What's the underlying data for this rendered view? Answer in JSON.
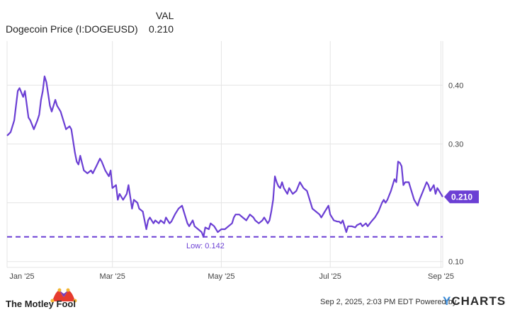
{
  "header": {
    "col_label": "VAL",
    "series_name": "Dogecoin Price (I:DOGEUSD)",
    "series_value": "0.210"
  },
  "footer": {
    "timestamp": "Sep 2, 2025, 2:03 PM EDT",
    "powered_by": "Powered by",
    "ycharts_y": "Y",
    "ycharts_rest": "CHARTS",
    "brand_left": "The Motley Fool"
  },
  "colors": {
    "line": "#6b3fd4",
    "grid": "#e5e5e5",
    "low_line": "#6b3fd4",
    "badge": "#6b3fd4"
  },
  "chart_data": {
    "type": "line",
    "title": "Dogecoin Price (I:DOGEUSD)",
    "xlabel": "",
    "ylabel": "",
    "y_ticks": [
      0.1,
      0.2,
      0.3,
      0.4
    ],
    "y_tick_labels": [
      "0.10",
      "",
      "0.30",
      "0.40"
    ],
    "ylim": [
      0.09,
      0.475
    ],
    "x_ticks": [
      "Jan '25",
      "Mar '25",
      "May '25",
      "Jul '25",
      "Sep '25"
    ],
    "x_tick_dates": [
      "2025-01-01",
      "2025-03-01",
      "2025-05-01",
      "2025-07-01",
      "2025-09-01"
    ],
    "xlim": [
      "2025-01-01",
      "2025-09-02"
    ],
    "grid": true,
    "current_value_label": "0.210",
    "low": {
      "value": 0.142,
      "label": "Low: 0.142"
    },
    "series": [
      {
        "name": "Dogecoin Price (I:DOGEUSD)",
        "points": [
          [
            "2025-01-01",
            0.314
          ],
          [
            "2025-01-03",
            0.32
          ],
          [
            "2025-01-05",
            0.34
          ],
          [
            "2025-01-07",
            0.39
          ],
          [
            "2025-01-08",
            0.395
          ],
          [
            "2025-01-10",
            0.38
          ],
          [
            "2025-01-11",
            0.39
          ],
          [
            "2025-01-13",
            0.345
          ],
          [
            "2025-01-14",
            0.34
          ],
          [
            "2025-01-16",
            0.325
          ],
          [
            "2025-01-18",
            0.34
          ],
          [
            "2025-01-19",
            0.35
          ],
          [
            "2025-01-20",
            0.375
          ],
          [
            "2025-01-21",
            0.39
          ],
          [
            "2025-01-22",
            0.415
          ],
          [
            "2025-01-23",
            0.405
          ],
          [
            "2025-01-25",
            0.365
          ],
          [
            "2025-01-26",
            0.355
          ],
          [
            "2025-01-28",
            0.375
          ],
          [
            "2025-01-29",
            0.365
          ],
          [
            "2025-01-31",
            0.355
          ],
          [
            "2025-02-02",
            0.335
          ],
          [
            "2025-02-03",
            0.325
          ],
          [
            "2025-02-05",
            0.33
          ],
          [
            "2025-02-06",
            0.325
          ],
          [
            "2025-02-08",
            0.285
          ],
          [
            "2025-02-09",
            0.27
          ],
          [
            "2025-02-10",
            0.265
          ],
          [
            "2025-02-11",
            0.28
          ],
          [
            "2025-02-13",
            0.255
          ],
          [
            "2025-02-15",
            0.25
          ],
          [
            "2025-02-17",
            0.255
          ],
          [
            "2025-02-18",
            0.25
          ],
          [
            "2025-02-20",
            0.262
          ],
          [
            "2025-02-22",
            0.275
          ],
          [
            "2025-02-23",
            0.27
          ],
          [
            "2025-02-25",
            0.255
          ],
          [
            "2025-02-27",
            0.245
          ],
          [
            "2025-02-28",
            0.255
          ],
          [
            "2025-03-01",
            0.225
          ],
          [
            "2025-03-03",
            0.23
          ],
          [
            "2025-03-04",
            0.205
          ],
          [
            "2025-03-05",
            0.215
          ],
          [
            "2025-03-07",
            0.205
          ],
          [
            "2025-03-09",
            0.215
          ],
          [
            "2025-03-10",
            0.23
          ],
          [
            "2025-03-12",
            0.19
          ],
          [
            "2025-03-13",
            0.205
          ],
          [
            "2025-03-15",
            0.2
          ],
          [
            "2025-03-16",
            0.19
          ],
          [
            "2025-03-18",
            0.185
          ],
          [
            "2025-03-20",
            0.155
          ],
          [
            "2025-03-21",
            0.17
          ],
          [
            "2025-03-22",
            0.175
          ],
          [
            "2025-03-24",
            0.165
          ],
          [
            "2025-03-25",
            0.17
          ],
          [
            "2025-03-27",
            0.165
          ],
          [
            "2025-03-28",
            0.17
          ],
          [
            "2025-03-30",
            0.165
          ],
          [
            "2025-03-31",
            0.175
          ],
          [
            "2025-04-02",
            0.165
          ],
          [
            "2025-04-03",
            0.168
          ],
          [
            "2025-04-05",
            0.18
          ],
          [
            "2025-04-07",
            0.19
          ],
          [
            "2025-04-09",
            0.195
          ],
          [
            "2025-04-10",
            0.185
          ],
          [
            "2025-04-12",
            0.165
          ],
          [
            "2025-04-13",
            0.16
          ],
          [
            "2025-04-15",
            0.17
          ],
          [
            "2025-04-16",
            0.16
          ],
          [
            "2025-04-18",
            0.155
          ],
          [
            "2025-04-20",
            0.15
          ],
          [
            "2025-04-21",
            0.142
          ],
          [
            "2025-04-22",
            0.158
          ],
          [
            "2025-04-24",
            0.155
          ],
          [
            "2025-04-25",
            0.165
          ],
          [
            "2025-04-27",
            0.16
          ],
          [
            "2025-04-29",
            0.15
          ],
          [
            "2025-05-01",
            0.155
          ],
          [
            "2025-05-03",
            0.155
          ],
          [
            "2025-05-05",
            0.16
          ],
          [
            "2025-05-07",
            0.165
          ],
          [
            "2025-05-08",
            0.175
          ],
          [
            "2025-05-09",
            0.18
          ],
          [
            "2025-05-11",
            0.18
          ],
          [
            "2025-05-13",
            0.175
          ],
          [
            "2025-05-15",
            0.17
          ],
          [
            "2025-05-17",
            0.18
          ],
          [
            "2025-05-19",
            0.175
          ],
          [
            "2025-05-20",
            0.17
          ],
          [
            "2025-05-22",
            0.165
          ],
          [
            "2025-05-24",
            0.17
          ],
          [
            "2025-05-25",
            0.175
          ],
          [
            "2025-05-27",
            0.165
          ],
          [
            "2025-05-28",
            0.17
          ],
          [
            "2025-05-29",
            0.185
          ],
          [
            "2025-05-30",
            0.205
          ],
          [
            "2025-05-31",
            0.245
          ],
          [
            "2025-06-01",
            0.235
          ],
          [
            "2025-06-02",
            0.228
          ],
          [
            "2025-06-03",
            0.225
          ],
          [
            "2025-06-04",
            0.235
          ],
          [
            "2025-06-05",
            0.225
          ],
          [
            "2025-06-07",
            0.215
          ],
          [
            "2025-06-08",
            0.225
          ],
          [
            "2025-06-10",
            0.215
          ],
          [
            "2025-06-12",
            0.22
          ],
          [
            "2025-06-14",
            0.235
          ],
          [
            "2025-06-16",
            0.225
          ],
          [
            "2025-06-18",
            0.22
          ],
          [
            "2025-06-20",
            0.2
          ],
          [
            "2025-06-21",
            0.19
          ],
          [
            "2025-06-23",
            0.185
          ],
          [
            "2025-06-25",
            0.18
          ],
          [
            "2025-06-26",
            0.175
          ],
          [
            "2025-06-28",
            0.185
          ],
          [
            "2025-06-30",
            0.195
          ],
          [
            "2025-07-01",
            0.18
          ],
          [
            "2025-07-03",
            0.17
          ],
          [
            "2025-07-05",
            0.168
          ],
          [
            "2025-07-06",
            0.168
          ],
          [
            "2025-07-07",
            0.165
          ],
          [
            "2025-07-08",
            0.17
          ],
          [
            "2025-07-10",
            0.15
          ],
          [
            "2025-07-11",
            0.16
          ],
          [
            "2025-07-13",
            0.16
          ],
          [
            "2025-07-15",
            0.158
          ],
          [
            "2025-07-16",
            0.162
          ],
          [
            "2025-07-18",
            0.165
          ],
          [
            "2025-07-19",
            0.16
          ],
          [
            "2025-07-21",
            0.165
          ],
          [
            "2025-07-22",
            0.16
          ],
          [
            "2025-07-24",
            0.168
          ],
          [
            "2025-07-26",
            0.175
          ],
          [
            "2025-07-28",
            0.185
          ],
          [
            "2025-07-30",
            0.2
          ],
          [
            "2025-07-31",
            0.205
          ],
          [
            "2025-08-01",
            0.2
          ],
          [
            "2025-08-02",
            0.205
          ],
          [
            "2025-08-04",
            0.22
          ],
          [
            "2025-08-06",
            0.24
          ],
          [
            "2025-08-07",
            0.235
          ],
          [
            "2025-08-08",
            0.27
          ],
          [
            "2025-08-09",
            0.268
          ],
          [
            "2025-08-10",
            0.262
          ],
          [
            "2025-08-11",
            0.23
          ],
          [
            "2025-08-12",
            0.235
          ],
          [
            "2025-08-14",
            0.235
          ],
          [
            "2025-08-15",
            0.225
          ],
          [
            "2025-08-17",
            0.205
          ],
          [
            "2025-08-19",
            0.195
          ],
          [
            "2025-08-20",
            0.205
          ],
          [
            "2025-08-22",
            0.22
          ],
          [
            "2025-08-24",
            0.235
          ],
          [
            "2025-08-25",
            0.23
          ],
          [
            "2025-08-26",
            0.22
          ],
          [
            "2025-08-28",
            0.23
          ],
          [
            "2025-08-29",
            0.215
          ],
          [
            "2025-08-30",
            0.225
          ],
          [
            "2025-08-31",
            0.22
          ],
          [
            "2025-09-01",
            0.215
          ],
          [
            "2025-09-02",
            0.21
          ]
        ]
      }
    ]
  }
}
